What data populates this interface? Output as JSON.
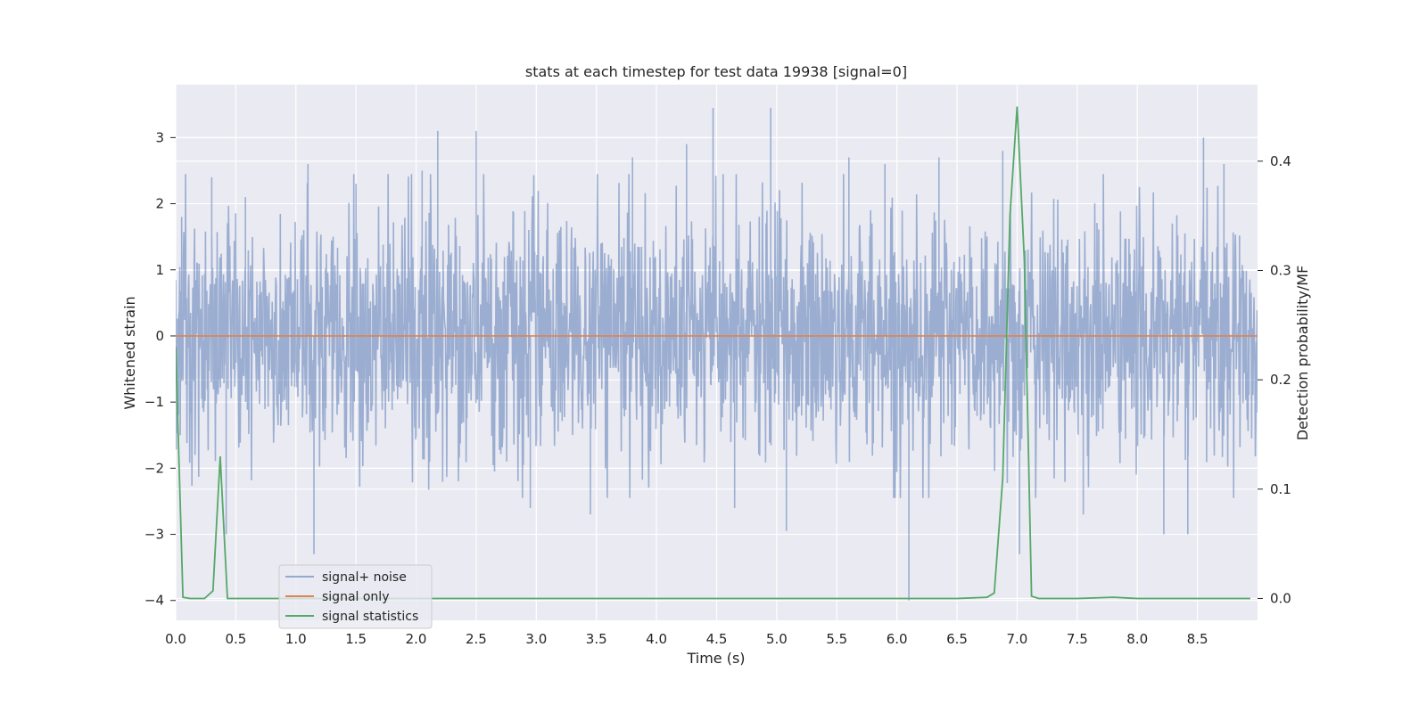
{
  "chart_data": {
    "type": "line",
    "title": "stats at each timestep for test data 19938 [signal=0]",
    "xlabel": "Time (s)",
    "ylabel": "Whitened strain",
    "y2label": "Detection probability/MF",
    "xlim": [
      0.0,
      9.0
    ],
    "ylim": [
      -4.3,
      3.8
    ],
    "y2lim": [
      -0.02,
      0.47
    ],
    "xticks": [
      "0.0",
      "0.5",
      "1.0",
      "1.5",
      "2.0",
      "2.5",
      "3.0",
      "3.5",
      "4.0",
      "4.5",
      "5.0",
      "5.5",
      "6.0",
      "6.5",
      "7.0",
      "7.5",
      "8.0",
      "8.5"
    ],
    "yticks": [
      "3",
      "2",
      "1",
      "0",
      "−1",
      "−2",
      "−3",
      "−4"
    ],
    "y2ticks": [
      "0.4",
      "0.3",
      "0.2",
      "0.1",
      "0.0"
    ],
    "grid": true,
    "legend_position": "lower-left",
    "series": [
      {
        "name": "signal+ noise",
        "color": "#4c72b0",
        "axis": "left",
        "description_kind": "dense noise band",
        "band_typical": 1.3,
        "peaks_x": [
          0.05,
          0.3,
          0.42,
          0.58,
          1.1,
          1.15,
          1.5,
          2.05,
          2.18,
          2.5,
          2.95,
          3.45,
          3.8,
          4.03,
          4.25,
          4.47,
          4.65,
          4.95,
          5.08,
          5.6,
          5.9,
          6.1,
          6.35,
          6.88,
          7.02,
          7.55,
          8.22,
          8.42,
          8.55,
          8.72
        ],
        "peaks_y": [
          1.8,
          2.4,
          -3.0,
          2.1,
          2.6,
          -3.3,
          2.3,
          2.5,
          3.1,
          3.1,
          -2.6,
          -2.7,
          2.7,
          -0.6,
          2.9,
          3.45,
          -2.6,
          3.45,
          -2.95,
          2.7,
          2.6,
          -4.0,
          2.7,
          2.8,
          -3.3,
          -2.7,
          -3.0,
          -3.0,
          3.0,
          2.6
        ]
      },
      {
        "name": "signal only",
        "color": "#dd8452",
        "axis": "left",
        "x": [
          0.0,
          9.0
        ],
        "values": [
          0.0,
          0.0
        ]
      },
      {
        "name": "signal statistics",
        "color": "#55a868",
        "axis": "right",
        "x": [
          0.0,
          0.06,
          0.12,
          0.18,
          0.24,
          0.31,
          0.37,
          0.43,
          0.5,
          1.0,
          2.0,
          3.0,
          4.0,
          5.0,
          6.0,
          6.5,
          6.75,
          6.81,
          6.88,
          6.94,
          7.0,
          7.06,
          7.12,
          7.18,
          7.25,
          7.5,
          7.8,
          8.0,
          8.5,
          8.94
        ],
        "values": [
          0.23,
          0.001,
          0.0,
          0.0,
          0.0,
          0.007,
          0.13,
          0.0,
          0.0,
          0.0,
          0.0,
          0.0,
          0.0,
          0.0,
          0.0,
          0.0,
          0.001,
          0.005,
          0.11,
          0.35,
          0.45,
          0.31,
          0.002,
          0.0,
          0.0,
          0.0,
          0.001,
          0.0,
          0.0,
          0.0
        ]
      }
    ]
  }
}
